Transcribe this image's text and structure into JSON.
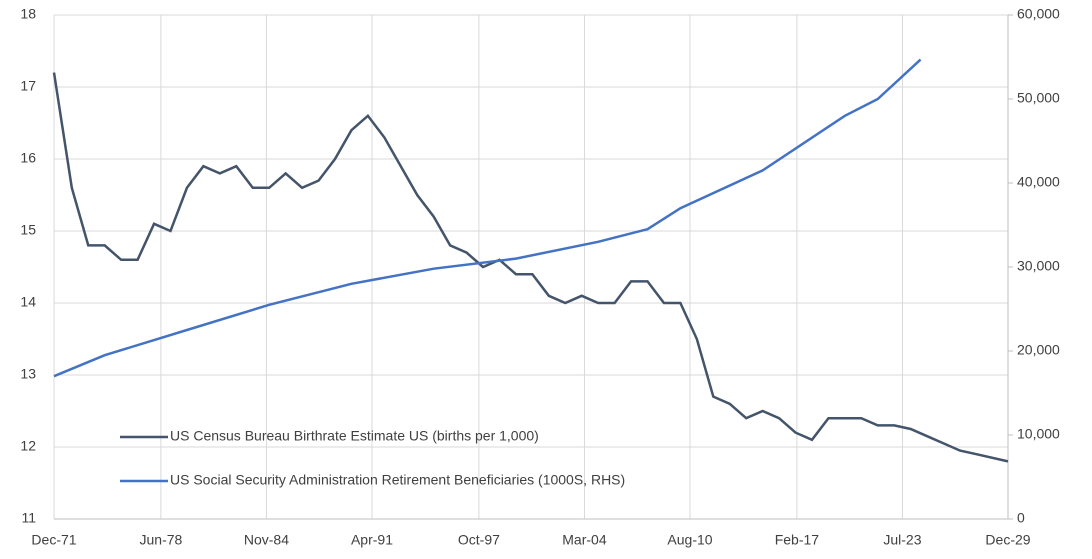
{
  "chart_data": {
    "type": "line",
    "xlim": [
      1971.917,
      2029.917
    ],
    "xticks": [
      {
        "value": 1971.917,
        "label": "Dec-71"
      },
      {
        "value": 1978.417,
        "label": "Jun-78"
      },
      {
        "value": 1984.833,
        "label": "Nov-84"
      },
      {
        "value": 1991.25,
        "label": "Apr-91"
      },
      {
        "value": 1997.75,
        "label": "Oct-97"
      },
      {
        "value": 2004.167,
        "label": "Mar-04"
      },
      {
        "value": 2010.583,
        "label": "Aug-10"
      },
      {
        "value": 2017.083,
        "label": "Feb-17"
      },
      {
        "value": 2023.5,
        "label": "Jul-23"
      },
      {
        "value": 2029.917,
        "label": "Dec-29"
      }
    ],
    "ylim": [
      11,
      18
    ],
    "yticks": [
      11,
      12,
      13,
      14,
      15,
      16,
      17,
      18
    ],
    "y2lim": [
      0,
      60000
    ],
    "y2ticks": [
      0,
      {
        "value": 10000,
        "label": "10,000"
      },
      {
        "value": 20000,
        "label": "20,000"
      },
      {
        "value": 30000,
        "label": "30,000"
      },
      {
        "value": 40000,
        "label": "40,000"
      },
      {
        "value": 50000,
        "label": "50,000"
      },
      {
        "value": 60000,
        "label": "60,000"
      }
    ],
    "grid": true,
    "legend": "lower-left",
    "series": [
      {
        "name": "US Census Bureau Birthrate Estimate US (births per 1,000)",
        "color": "#44546a",
        "axis": "y",
        "x": [
          1971.917,
          1973,
          1974,
          1975,
          1976,
          1977,
          1978,
          1979,
          1980,
          1981,
          1982,
          1983,
          1984,
          1985,
          1986,
          1987,
          1988,
          1989,
          1990,
          1991,
          1992,
          1993,
          1994,
          1995,
          1996,
          1997,
          1998,
          1999,
          2000,
          2001,
          2002,
          2003,
          2004,
          2005,
          2006,
          2007,
          2008,
          2009,
          2010,
          2011,
          2012,
          2013,
          2014,
          2015,
          2016,
          2017,
          2018,
          2019,
          2020,
          2021,
          2022,
          2023,
          2024,
          2025,
          2026,
          2027,
          2028,
          2029.917
        ],
        "values": [
          17.2,
          15.6,
          14.8,
          14.8,
          14.6,
          14.6,
          15.1,
          15.0,
          15.6,
          15.9,
          15.8,
          15.9,
          15.6,
          15.6,
          15.8,
          15.6,
          15.7,
          16.0,
          16.4,
          16.6,
          16.3,
          15.9,
          15.5,
          15.2,
          14.8,
          14.7,
          14.5,
          14.6,
          14.4,
          14.4,
          14.1,
          14.0,
          14.1,
          14.0,
          14.0,
          14.3,
          14.3,
          14.0,
          14.0,
          13.5,
          12.7,
          12.6,
          12.4,
          12.5,
          12.4,
          12.2,
          12.1,
          12.4,
          12.4,
          12.4,
          12.3,
          12.3,
          12.25,
          12.15,
          12.05,
          11.95,
          11.9,
          11.8
        ]
      },
      {
        "name": "US Social Security Administration Retirement Beneficiaries (1000S, RHS)",
        "color": "#4472c4",
        "axis": "y2",
        "x": [
          1971.917,
          1975,
          1980,
          1985,
          1990,
          1995,
          2000,
          2005,
          2008,
          2010,
          2015,
          2020,
          2022,
          2024.6
        ],
        "values": [
          17000,
          19500,
          22500,
          25500,
          28000,
          29800,
          31000,
          33000,
          34500,
          37000,
          41500,
          48000,
          50000,
          54700
        ]
      }
    ]
  }
}
